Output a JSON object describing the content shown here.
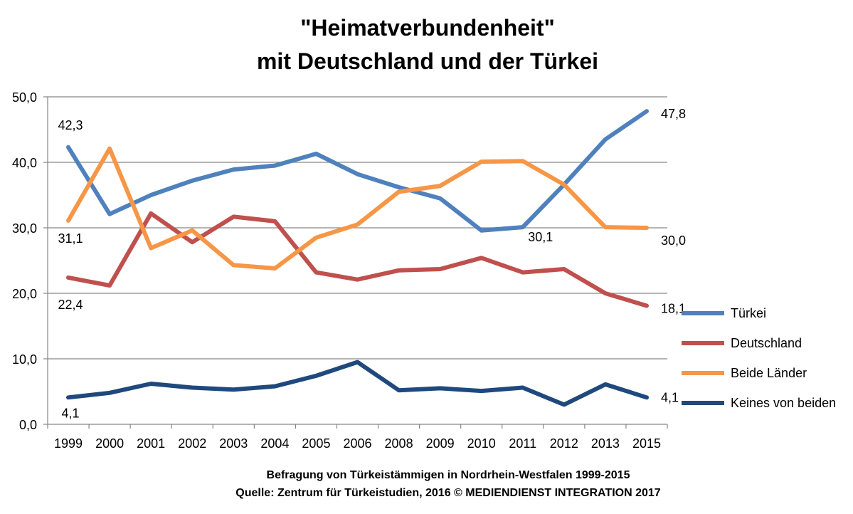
{
  "chart_data": {
    "type": "line",
    "title_lines": [
      "\"Heimatverbundenheit\"",
      "mit Deutschland und der Türkei"
    ],
    "categories": [
      "1999",
      "2000",
      "2001",
      "2002",
      "2003",
      "2004",
      "2005",
      "2006",
      "2008",
      "2009",
      "2010",
      "2011",
      "2012",
      "2013",
      "2015"
    ],
    "ylim": [
      0,
      50
    ],
    "yticks": [
      0,
      10,
      20,
      30,
      40,
      50
    ],
    "ytick_labels": [
      "0,0",
      "10,0",
      "20,0",
      "30,0",
      "40,0",
      "50,0"
    ],
    "grid": true,
    "legend_position": "right",
    "series": [
      {
        "name": "Türkei",
        "color": "#4F81BD",
        "values": [
          42.3,
          32.1,
          35.0,
          37.2,
          38.9,
          39.5,
          41.3,
          38.2,
          36.2,
          34.5,
          29.6,
          30.1,
          36.6,
          43.5,
          47.8
        ]
      },
      {
        "name": "Deutschland",
        "color": "#C0504D",
        "values": [
          22.4,
          21.2,
          32.2,
          27.8,
          31.7,
          31.0,
          23.2,
          22.1,
          23.5,
          23.7,
          25.4,
          23.2,
          23.7,
          20.0,
          18.1
        ]
      },
      {
        "name": "Beide Länder",
        "color": "#F79646",
        "values": [
          31.1,
          42.1,
          26.9,
          29.6,
          24.3,
          23.8,
          28.5,
          30.5,
          35.5,
          36.4,
          40.1,
          40.2,
          36.6,
          30.1,
          30.0
        ]
      },
      {
        "name": "Keines von beiden",
        "color": "#1F497D",
        "values": [
          4.1,
          4.8,
          6.2,
          5.6,
          5.3,
          5.8,
          7.4,
          9.5,
          5.2,
          5.5,
          5.1,
          5.6,
          3.0,
          6.1,
          4.1
        ]
      }
    ],
    "data_labels": [
      {
        "series": "Türkei",
        "category": "1999",
        "text": "42,3"
      },
      {
        "series": "Türkei",
        "category": "2011",
        "text": "30,1"
      },
      {
        "series": "Türkei",
        "category": "2015",
        "text": "47,8"
      },
      {
        "series": "Beide Länder",
        "category": "1999",
        "text": "31,1"
      },
      {
        "series": "Beide Länder",
        "category": "2015",
        "text": "30,0"
      },
      {
        "series": "Deutschland",
        "category": "1999",
        "text": "22,4"
      },
      {
        "series": "Deutschland",
        "category": "2015",
        "text": "18,1"
      },
      {
        "series": "Keines von beiden",
        "category": "1999",
        "text": "4,1"
      },
      {
        "series": "Keines von beiden",
        "category": "2015",
        "text": "4,1"
      }
    ],
    "footer_lines": [
      "Befragung von Türkeistämmigen in Nordrhein-Westfalen 1999-2015",
      "Quelle: Zentrum für Türkeistudien, 2016  © MEDIENDIENST INTEGRATION 2017"
    ]
  }
}
